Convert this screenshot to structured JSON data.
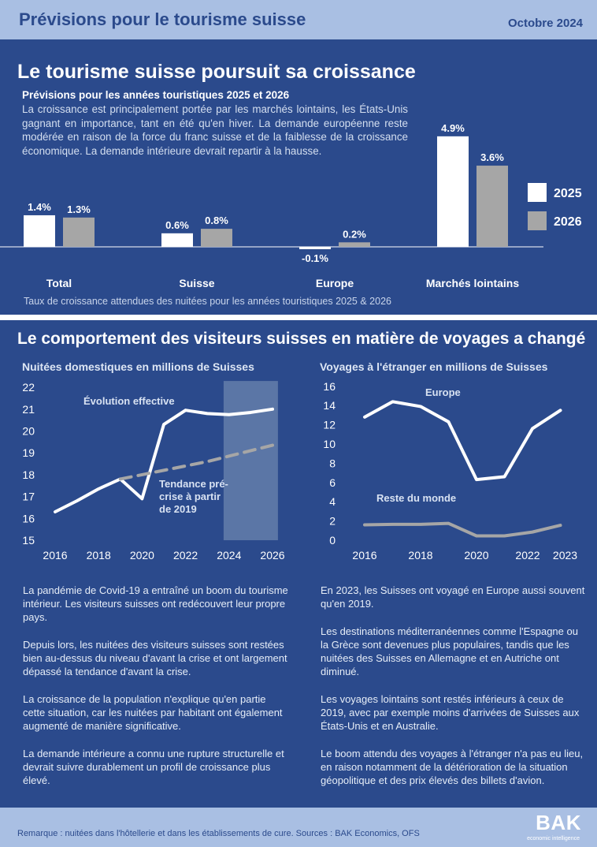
{
  "header": {
    "title": "Prévisions pour le tourisme suisse",
    "date": "Octobre 2024"
  },
  "section1": {
    "title": "Le tourisme suisse poursuit sa croissance",
    "subtitle": "Prévisions pour les années touristiques 2025 et 2026",
    "text": "La croissance est principalement portée par les marchés lointains, les États-Unis gagnant en importance, tant en été qu'en hiver. La demande européenne reste modérée en raison de la force du franc suisse et de la faiblesse de la croissance économique. La demande intérieure devrait repartir à la hausse.",
    "caption": "Taux de croissance attendues des nuitées pour les années touristiques 2025 & 2026"
  },
  "section2": {
    "title": "Le comportement des visiteurs suisses en matière de voyages a changé"
  },
  "chart_data": [
    {
      "type": "bar",
      "categories": [
        "Total",
        "Suisse",
        "Europe",
        "Marchés lointains"
      ],
      "series": [
        {
          "name": "2025",
          "values": [
            1.4,
            0.6,
            -0.1,
            4.9
          ],
          "labels": [
            "1.4%",
            "0.6%",
            "-0.1%",
            "4.9%"
          ],
          "color": "#ffffff"
        },
        {
          "name": "2026",
          "values": [
            1.3,
            0.8,
            0.2,
            3.6
          ],
          "labels": [
            "1.3%",
            "0.8%",
            "0.2%",
            "3.6%"
          ],
          "color": "#a6a6a6"
        }
      ]
    },
    {
      "type": "line",
      "title": "Nuitées domestiques en millions de Suisses",
      "x": [
        2016,
        2017,
        2018,
        2019,
        2020,
        2021,
        2022,
        2023,
        2024,
        2025,
        2026
      ],
      "ylim": [
        15,
        22
      ],
      "yticks": [
        "15",
        "16",
        "17",
        "18",
        "19",
        "20",
        "21",
        "22"
      ],
      "xticks": [
        "2016",
        "2018",
        "2020",
        "2022",
        "2024",
        "2026"
      ],
      "series": [
        {
          "name": "Évolution effective",
          "x": [
            2016,
            2017,
            2018,
            2019,
            2020,
            2021,
            2022,
            2023,
            2024,
            2025,
            2026
          ],
          "values": [
            16.3,
            16.8,
            17.35,
            17.8,
            16.9,
            20.3,
            20.95,
            20.8,
            20.75,
            20.85,
            21.0
          ],
          "color": "#ffffff",
          "dashed": false
        },
        {
          "name": "Tendance pré-crise à partir de 2019",
          "x": [
            2019,
            2020,
            2021,
            2022,
            2023,
            2024,
            2025,
            2026
          ],
          "values": [
            17.8,
            18.0,
            18.2,
            18.4,
            18.6,
            18.85,
            19.1,
            19.35
          ],
          "color": "#a6a6a6",
          "dashed": true
        }
      ],
      "annotations": [
        "Évolution effective",
        "Tendance pré-",
        "crise à partir",
        "de 2019"
      ],
      "shaded_range": [
        2023.75,
        2026.25
      ]
    },
    {
      "type": "line",
      "title": "Voyages à l'étranger en millions de Suisses",
      "x": [
        2016,
        2017,
        2018,
        2019,
        2020,
        2021,
        2022,
        2023
      ],
      "ylim": [
        0,
        16
      ],
      "yticks": [
        "0",
        "2",
        "4",
        "6",
        "8",
        "10",
        "12",
        "14",
        "16"
      ],
      "xticks": [
        "2016",
        "2018",
        "2020",
        "2022",
        "2023"
      ],
      "series": [
        {
          "name": "Europe",
          "values": [
            12.8,
            14.4,
            13.9,
            12.3,
            6.3,
            6.6,
            11.6,
            13.5
          ],
          "color": "#ffffff"
        },
        {
          "name": "Reste du monde",
          "values": [
            1.6,
            1.65,
            1.65,
            1.75,
            0.45,
            0.45,
            0.85,
            1.55
          ],
          "color": "#a6a6a6"
        }
      ]
    }
  ],
  "left_text": [
    "La pandémie de Covid-19 a entraîné un boom du tourisme intérieur. Les visiteurs suisses ont redécouvert leur propre pays.",
    "Depuis lors, les nuitées des visiteurs suisses sont restées bien au-dessus du niveau d'avant la crise et ont largement dépassé la tendance d'avant la crise.",
    "La croissance de la population n'explique qu'en partie cette situation, car les nuitées par habitant ont également augmenté de manière significative.",
    "La demande intérieure a connu une rupture structurelle et devrait suivre durablement un profil de croissance plus élevé."
  ],
  "right_text": [
    "En 2023, les Suisses ont voyagé en Europe aussi souvent qu'en 2019.",
    "Les destinations méditerranéennes comme l'Espagne ou la Grèce sont devenues plus populaires, tandis que les nuitées des Suisses en Allemagne et en Autriche ont diminué.",
    "Les voyages lointains sont restés inférieurs à ceux de 2019, avec par exemple moins d'arrivées de Suisses aux États-Unis et en Australie.",
    "Le boom attendu des voyages à l'étranger n'a pas eu lieu, en raison notamment de la détérioration de la situation géopolitique et des prix élevés des billets d'avion."
  ],
  "footer": {
    "note": "Remarque : nuitées dans l'hôtellerie et dans les établissements de cure. Sources : BAK Economics, OFS",
    "logo": "BAK",
    "logo_sub": "economic intelligence"
  },
  "colors": {
    "background": "#2b4a8c",
    "bar_band": "#a9bfe3",
    "series2": "#a6a6a6"
  }
}
